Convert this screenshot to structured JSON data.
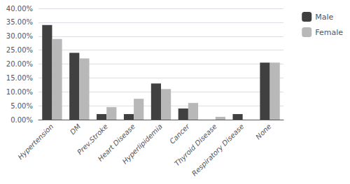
{
  "chart_data": {
    "type": "bar",
    "categories": [
      "Hypertension",
      "DM",
      "Prev.Stroke",
      "Heart Disease",
      "Hyperlipidemia",
      "Cancer",
      "Thyroid Disease",
      "Respiratory Disease",
      "None"
    ],
    "series": [
      {
        "name": "Male",
        "color": "#404040",
        "values": [
          0.34,
          0.24,
          0.02,
          0.02,
          0.13,
          0.04,
          0.0,
          0.02,
          0.205
        ]
      },
      {
        "name": "Female",
        "color": "#b8b8b8",
        "values": [
          0.29,
          0.22,
          0.045,
          0.075,
          0.11,
          0.06,
          0.01,
          0.0,
          0.205
        ]
      }
    ],
    "ylim": [
      0,
      0.4
    ],
    "yticks": [
      {
        "value": 0.0,
        "label": "0.00%"
      },
      {
        "value": 0.05,
        "label": "5.00%"
      },
      {
        "value": 0.1,
        "label": "10.00%"
      },
      {
        "value": 0.15,
        "label": "15.00%"
      },
      {
        "value": 0.2,
        "label": "20.00%"
      },
      {
        "value": 0.25,
        "label": "25.00%"
      },
      {
        "value": 0.3,
        "label": "30.00%"
      },
      {
        "value": 0.35,
        "label": "35.00%"
      },
      {
        "value": 0.4,
        "label": "40.00%"
      }
    ],
    "grid": true,
    "legend": "upper right"
  }
}
